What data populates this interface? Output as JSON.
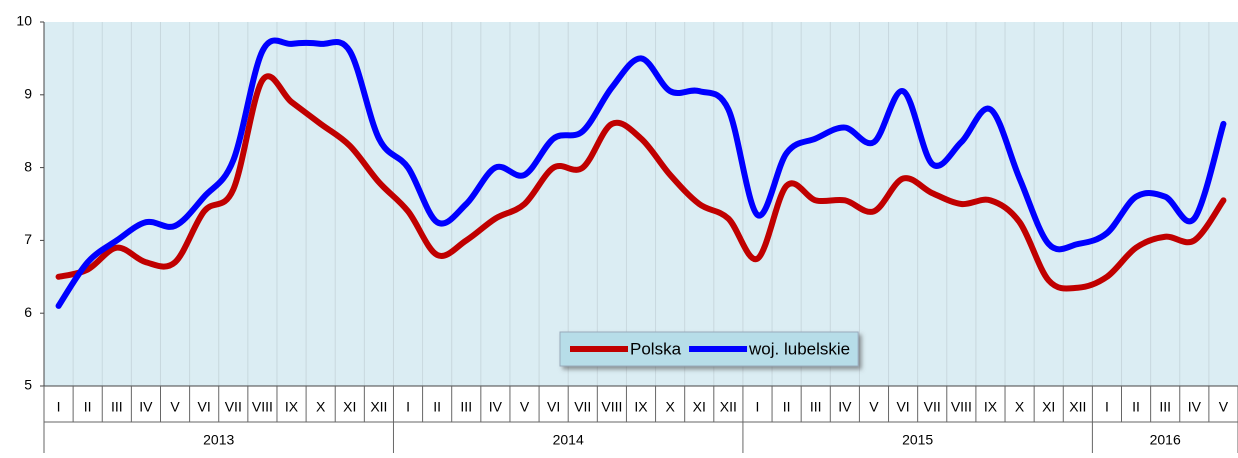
{
  "chart_data": {
    "type": "line",
    "categories": [
      "I",
      "II",
      "III",
      "IV",
      "V",
      "VI",
      "VII",
      "VIII",
      "IX",
      "X",
      "XI",
      "XII",
      "I",
      "II",
      "III",
      "IV",
      "V",
      "VI",
      "VII",
      "VIII",
      "IX",
      "X",
      "XI",
      "XII",
      "I",
      "II",
      "III",
      "IV",
      "V",
      "VI",
      "VII",
      "VIII",
      "IX",
      "X",
      "XI",
      "XII",
      "I",
      "II",
      "III",
      "IV",
      "V"
    ],
    "years": [
      "2013",
      "2014",
      "2015",
      "2016"
    ],
    "series": [
      {
        "name": "Polska",
        "color": "#c00000",
        "values": [
          6.5,
          6.6,
          6.9,
          6.7,
          6.7,
          7.4,
          7.7,
          9.2,
          8.9,
          8.6,
          8.3,
          7.8,
          7.4,
          6.8,
          7.0,
          7.3,
          7.5,
          8.0,
          8.0,
          8.6,
          8.4,
          7.9,
          7.5,
          7.3,
          6.75,
          7.75,
          7.55,
          7.55,
          7.4,
          7.85,
          7.65,
          7.5,
          7.55,
          7.25,
          6.45,
          6.35,
          6.5,
          6.9,
          7.05,
          7.0,
          7.55
        ]
      },
      {
        "name": "woj. lubelskie",
        "color": "#0000ff",
        "values": [
          6.1,
          6.7,
          7.0,
          7.25,
          7.2,
          7.6,
          8.1,
          9.6,
          9.7,
          9.7,
          9.6,
          8.4,
          8.0,
          7.25,
          7.5,
          8.0,
          7.9,
          8.4,
          8.5,
          9.1,
          9.5,
          9.05,
          9.05,
          8.8,
          7.35,
          8.2,
          8.4,
          8.55,
          8.35,
          9.05,
          8.05,
          8.35,
          8.8,
          7.85,
          6.95,
          6.95,
          7.1,
          7.6,
          7.6,
          7.3,
          8.6
        ]
      }
    ],
    "ylim": [
      5,
      10
    ],
    "yticks": [
      5,
      6,
      7,
      8,
      9,
      10
    ]
  }
}
